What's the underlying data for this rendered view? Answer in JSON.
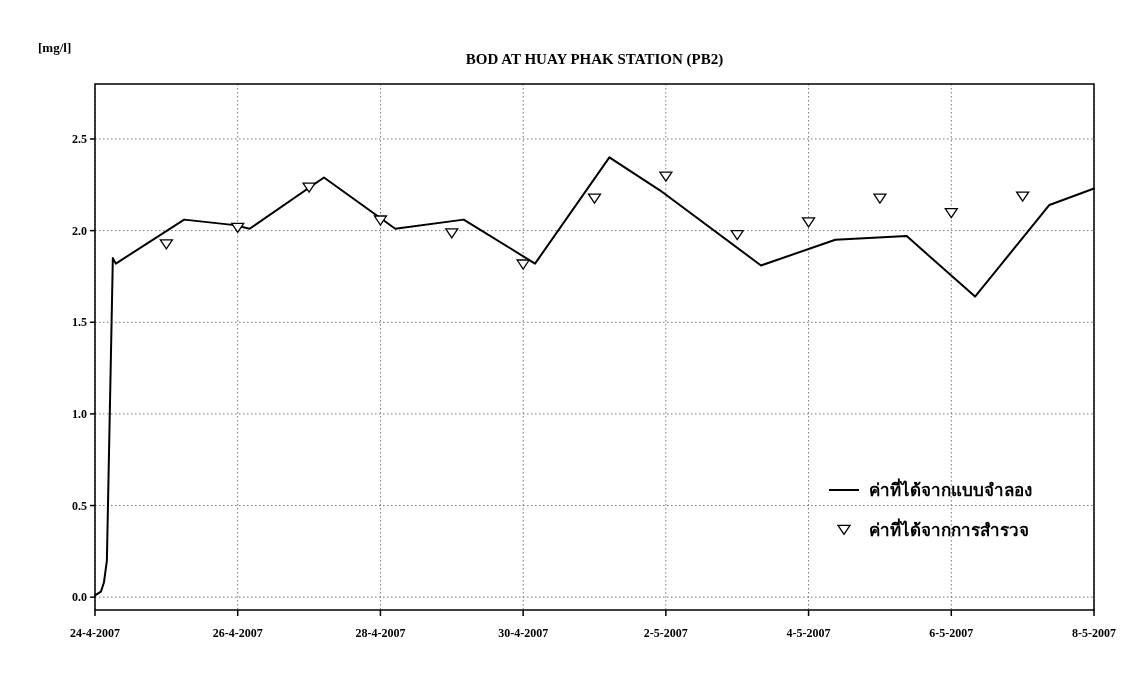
{
  "chart_data": {
    "type": "line",
    "title": "BOD AT HUAY PHAK STATION (PB2)",
    "ylabel": "[mg/l]",
    "xlim": [
      "2007-04-24",
      "2007-05-08"
    ],
    "xticks": [
      {
        "value": "2007-04-24",
        "label": "24-4-2007"
      },
      {
        "value": "2007-04-26",
        "label": "26-4-2007"
      },
      {
        "value": "2007-04-28",
        "label": "28-4-2007"
      },
      {
        "value": "2007-04-30",
        "label": "30-4-2007"
      },
      {
        "value": "2007-05-02",
        "label": "2-5-2007"
      },
      {
        "value": "2007-05-04",
        "label": "4-5-2007"
      },
      {
        "value": "2007-05-06",
        "label": "6-5-2007"
      },
      {
        "value": "2007-05-08",
        "label": "8-5-2007"
      }
    ],
    "ylim": [
      -0.07,
      2.8
    ],
    "yticks": [
      {
        "value": 0,
        "label": "0.0"
      },
      0.5,
      {
        "value": 1,
        "label": "1.0"
      },
      1.5,
      {
        "value": 2,
        "label": "2.0"
      },
      2.5
    ],
    "grid": true,
    "legend": "bottom right",
    "series": [
      {
        "name": "ค่าที่ได้จากแบบจำลอง",
        "color": "#000000",
        "marker": "none",
        "line_style": "solid",
        "x": [
          "2007-04-24T00:00",
          "2007-04-24T02:00",
          "2007-04-24T03:00",
          "2007-04-24T04:00",
          "2007-04-24T06:00",
          "2007-04-24T07:00",
          "2007-04-25T06:00",
          "2007-04-25T23:00",
          "2007-04-26T04:00",
          "2007-04-27T05:00",
          "2007-04-28T05:00",
          "2007-04-29T04:00",
          "2007-04-30T04:00",
          "2007-05-01T05:00",
          "2007-05-01T22:00",
          "2007-05-03T08:00",
          "2007-05-04T09:00",
          "2007-05-05T09:00",
          "2007-05-06T08:00",
          "2007-05-07T09:00",
          "2007-05-08T00:00"
        ],
        "values": [
          0.01,
          0.03,
          0.08,
          0.2,
          1.85,
          1.82,
          2.06,
          2.03,
          2.01,
          2.29,
          2.01,
          2.06,
          1.82,
          2.4,
          2.22,
          1.81,
          1.95,
          1.97,
          1.64,
          2.14,
          2.23
        ]
      },
      {
        "name": "ค่าที่ได้จากการสำรวจ",
        "type": "scatter",
        "color": "#000000",
        "marker": "triangle",
        "x": [
          "2007-04-25",
          "2007-04-26",
          "2007-04-27",
          "2007-04-28",
          "2007-04-29",
          "2007-04-30",
          "2007-05-01",
          "2007-05-02",
          "2007-05-03",
          "2007-05-04",
          "2007-05-05",
          "2007-05-06",
          "2007-05-07"
        ],
        "values": [
          1.93,
          2.02,
          2.24,
          2.06,
          1.99,
          1.82,
          2.18,
          2.3,
          1.98,
          2.05,
          2.18,
          2.1,
          2.19
        ]
      }
    ]
  }
}
